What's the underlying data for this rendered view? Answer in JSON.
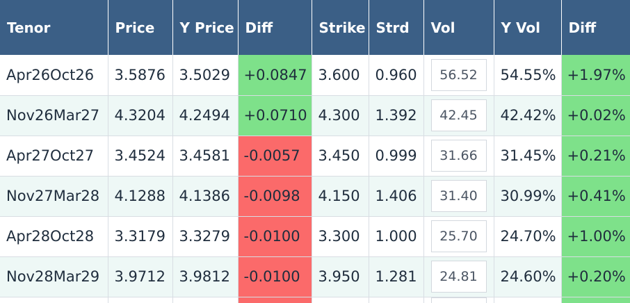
{
  "colors": {
    "header_bg": "#3b5f86",
    "header_text": "#ffffff",
    "positive_bg": "#7ee18a",
    "negative_bg": "#fb6a6a",
    "alt_row_bg": "#eef8f6"
  },
  "headers": {
    "tenor": "Tenor",
    "price": "Price",
    "y_price": "Y Price",
    "diff": "Diff",
    "strike": "Strike",
    "strd": "Strd",
    "vol": "Vol",
    "y_vol": "Y Vol",
    "vol_diff": "Diff"
  },
  "rows": [
    {
      "tenor": "Apr26Oct26",
      "price": "3.5876",
      "y_price": "3.5029",
      "diff": "+0.0847",
      "diff_sign": "pos",
      "strike": "3.600",
      "strd": "0.960",
      "vol": "56.52",
      "y_vol": "54.55%",
      "vol_diff": "+1.97%",
      "vol_diff_sign": "pos"
    },
    {
      "tenor": "Nov26Mar27",
      "price": "4.3204",
      "y_price": "4.2494",
      "diff": "+0.0710",
      "diff_sign": "pos",
      "strike": "4.300",
      "strd": "1.392",
      "vol": "42.45",
      "y_vol": "42.42%",
      "vol_diff": "+0.02%",
      "vol_diff_sign": "pos"
    },
    {
      "tenor": "Apr27Oct27",
      "price": "3.4524",
      "y_price": "3.4581",
      "diff": "-0.0057",
      "diff_sign": "neg",
      "strike": "3.450",
      "strd": "0.999",
      "vol": "31.66",
      "y_vol": "31.45%",
      "vol_diff": "+0.21%",
      "vol_diff_sign": "pos"
    },
    {
      "tenor": "Nov27Mar28",
      "price": "4.1288",
      "y_price": "4.1386",
      "diff": "-0.0098",
      "diff_sign": "neg",
      "strike": "4.150",
      "strd": "1.406",
      "vol": "31.40",
      "y_vol": "30.99%",
      "vol_diff": "+0.41%",
      "vol_diff_sign": "pos"
    },
    {
      "tenor": "Apr28Oct28",
      "price": "3.3179",
      "y_price": "3.3279",
      "diff": "-0.0100",
      "diff_sign": "neg",
      "strike": "3.300",
      "strd": "1.000",
      "vol": "25.70",
      "y_vol": "24.70%",
      "vol_diff": "+1.00%",
      "vol_diff_sign": "pos"
    },
    {
      "tenor": "Nov28Mar29",
      "price": "3.9712",
      "y_price": "3.9812",
      "diff": "-0.0100",
      "diff_sign": "neg",
      "strike": "3.950",
      "strd": "1.281",
      "vol": "24.81",
      "y_vol": "24.60%",
      "vol_diff": "+0.20%",
      "vol_diff_sign": "pos"
    }
  ]
}
